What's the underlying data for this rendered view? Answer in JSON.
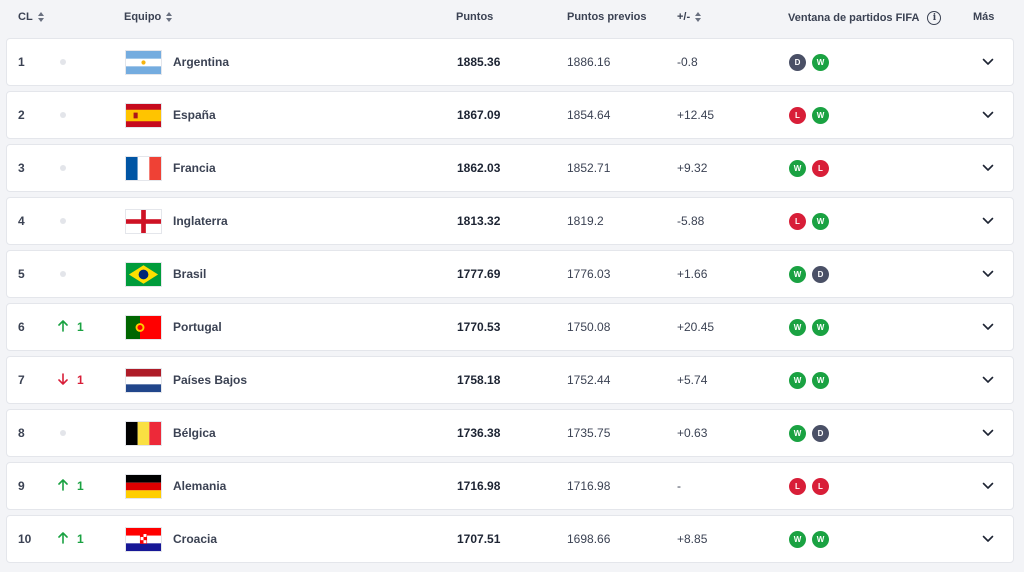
{
  "columns": {
    "rank": "CL",
    "team": "Equipo",
    "points": "Puntos",
    "previous": "Puntos previos",
    "diff": "+/-",
    "window": "Ventana de partidos FIFA",
    "more": "Más"
  },
  "colors": {
    "win": "#1aa242",
    "loss": "#d81e38",
    "draw": "#4a5066",
    "up": "#1aa242",
    "down": "#d81e38"
  },
  "rows": [
    {
      "rank": "1",
      "move": "",
      "team": "Argentina",
      "flag": "argentina-flag",
      "points": "1885.36",
      "previous": "1886.16",
      "diff": "-0.8",
      "results": [
        "D",
        "W"
      ]
    },
    {
      "rank": "2",
      "move": "",
      "team": "España",
      "flag": "spain-flag",
      "points": "1867.09",
      "previous": "1854.64",
      "diff": "+12.45",
      "results": [
        "L",
        "W"
      ]
    },
    {
      "rank": "3",
      "move": "",
      "team": "Francia",
      "flag": "france-flag",
      "points": "1862.03",
      "previous": "1852.71",
      "diff": "+9.32",
      "results": [
        "W",
        "L"
      ]
    },
    {
      "rank": "4",
      "move": "",
      "team": "Inglaterra",
      "flag": "england-flag",
      "points": "1813.32",
      "previous": "1819.2",
      "diff": "-5.88",
      "results": [
        "L",
        "W"
      ]
    },
    {
      "rank": "5",
      "move": "",
      "team": "Brasil",
      "flag": "brazil-flag",
      "points": "1777.69",
      "previous": "1776.03",
      "diff": "+1.66",
      "results": [
        "W",
        "D"
      ]
    },
    {
      "rank": "6",
      "move": "up",
      "moveValue": "1",
      "team": "Portugal",
      "flag": "portugal-flag",
      "points": "1770.53",
      "previous": "1750.08",
      "diff": "+20.45",
      "results": [
        "W",
        "W"
      ]
    },
    {
      "rank": "7",
      "move": "down",
      "moveValue": "1",
      "team": "Países Bajos",
      "flag": "netherlands-flag",
      "points": "1758.18",
      "previous": "1752.44",
      "diff": "+5.74",
      "results": [
        "W",
        "W"
      ]
    },
    {
      "rank": "8",
      "move": "",
      "team": "Bélgica",
      "flag": "belgium-flag",
      "points": "1736.38",
      "previous": "1735.75",
      "diff": "+0.63",
      "results": [
        "W",
        "D"
      ]
    },
    {
      "rank": "9",
      "move": "up",
      "moveValue": "1",
      "team": "Alemania",
      "flag": "germany-flag",
      "points": "1716.98",
      "previous": "1716.98",
      "diff": "-",
      "results": [
        "L",
        "L"
      ]
    },
    {
      "rank": "10",
      "move": "up",
      "moveValue": "1",
      "team": "Croacia",
      "flag": "croatia-flag",
      "points": "1707.51",
      "previous": "1698.66",
      "diff": "+8.85",
      "results": [
        "W",
        "W"
      ]
    }
  ]
}
